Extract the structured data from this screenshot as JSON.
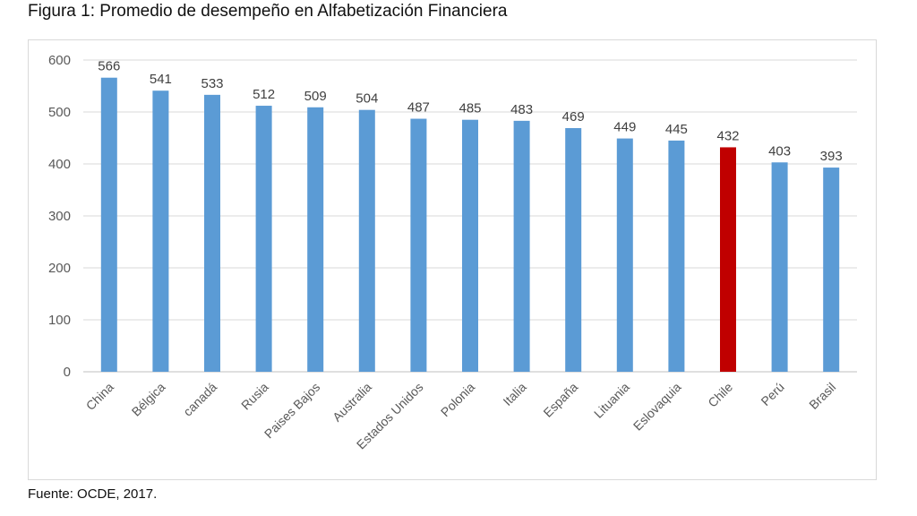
{
  "figure": {
    "title": "Figura 1: Promedio de desempeño en Alfabetización Financiera",
    "source": "Fuente: OCDE, 2017."
  },
  "colors": {
    "bar_default": "#5b9bd5",
    "bar_highlight": "#c00000",
    "gridline": "#d9d9d9",
    "axis": "#bfbfbf"
  },
  "chart_data": {
    "type": "bar",
    "title": "Figura 1: Promedio de desempeño en Alfabetización Financiera",
    "xlabel": "",
    "ylabel": "",
    "categories": [
      "China",
      "Bélgica",
      "canadá",
      "Rusia",
      "Paises Bajos",
      "Australia",
      "Estados Unidos",
      "Polonia",
      "Italia",
      "España",
      "Lituania",
      "Eslovaquia",
      "Chile",
      "Perú",
      "Brasil"
    ],
    "values": [
      566,
      541,
      533,
      512,
      509,
      504,
      487,
      485,
      483,
      469,
      449,
      445,
      432,
      403,
      393
    ],
    "highlight_category": "Chile",
    "ylim": [
      0,
      600
    ],
    "yticks": [
      0,
      100,
      200,
      300,
      400,
      500,
      600
    ],
    "grid": true,
    "data_labels": true,
    "legend": "none"
  }
}
